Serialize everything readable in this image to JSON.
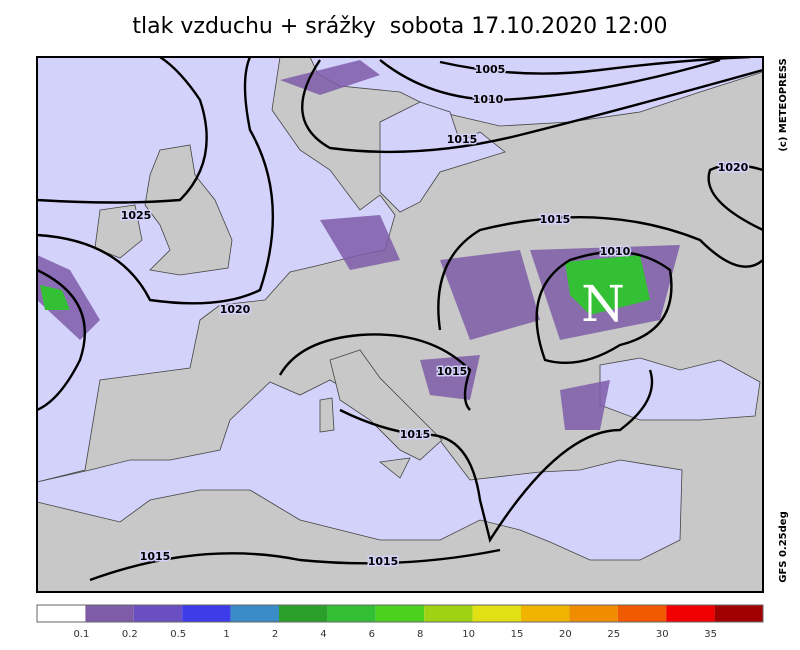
{
  "title": "tlak vzduchu + srážky  sobota 17.10.2020 12:00",
  "credit": "(c) METEOPRESS",
  "model": "GFS 0.25deg",
  "isobar_labels": [
    "1005",
    "1010",
    "1015",
    "1020",
    "1025",
    "1015",
    "1010",
    "1020",
    "1015",
    "1015",
    "1015",
    "1015"
  ],
  "pressure_center": "N",
  "legend": {
    "colors": [
      "#ffffff",
      "#7e5ca8",
      "#6a4fc2",
      "#3c3ce8",
      "#3a8cc8",
      "#2aa02a",
      "#34c034",
      "#4ad21e",
      "#a0d214",
      "#e0e014",
      "#f0b400",
      "#f08c00",
      "#f05a00",
      "#f00000",
      "#a00000"
    ],
    "labels": [
      "0.1",
      "0.2",
      "0.5",
      "1",
      "2",
      "4",
      "6",
      "8",
      "10",
      "15",
      "20",
      "25",
      "30",
      "35"
    ]
  }
}
